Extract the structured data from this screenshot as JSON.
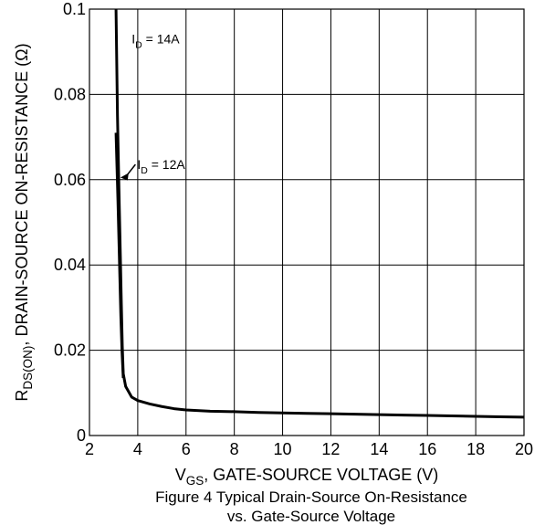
{
  "chart_data": {
    "type": "line",
    "title": "",
    "xlabel_parts": {
      "main": "V",
      "sub": "GS",
      "rest": ", GATE-SOURCE VOLTAGE (V)"
    },
    "ylabel_parts": {
      "main": "R",
      "sub": "DS(ON)",
      "rest": ", DRAIN-SOURCE ON-RESISTANCE (Ω)"
    },
    "caption_lines": [
      "Figure 4 Typical Drain-Source On-Resistance",
      "vs. Gate-Source Voltage"
    ],
    "xlim": [
      2,
      20
    ],
    "ylim": [
      0,
      0.1
    ],
    "x_ticks": [
      2,
      4,
      6,
      8,
      10,
      12,
      14,
      16,
      18,
      20
    ],
    "x_tick_labels": [
      "2",
      "4",
      "6",
      "8",
      "10",
      "12",
      "14",
      "16",
      "18",
      "20"
    ],
    "y_ticks": [
      0,
      0.02,
      0.04,
      0.06,
      0.08,
      0.1
    ],
    "y_tick_labels": [
      "0",
      "0.02",
      "0.04",
      "0.06",
      "0.08",
      "0.1"
    ],
    "grid": true,
    "annotations": [
      {
        "name": "id-14a-label",
        "main": "I",
        "sub": "D",
        "rest": " = 14A",
        "at": [
          3.75,
          0.092
        ]
      },
      {
        "name": "id-12a-label",
        "main": "I",
        "sub": "D",
        "rest": " = 12A",
        "at": [
          3.98,
          0.0625
        ],
        "arrow_to": [
          3.28,
          0.0605
        ]
      }
    ],
    "series": [
      {
        "key": "id14",
        "color": "#000000",
        "x": [
          3.1,
          3.16,
          3.22,
          3.28,
          3.32,
          3.36,
          3.4,
          3.5,
          3.75,
          4.0,
          4.5,
          5.0,
          5.5,
          6.0,
          7.0,
          8.0,
          9.0,
          10.0,
          11.0,
          12.0,
          13.0,
          14.0,
          15.0,
          16.0,
          17.0,
          18.0,
          19.0,
          20.0
        ],
        "y": [
          0.1,
          0.075,
          0.058,
          0.042,
          0.031,
          0.021,
          0.0145,
          0.0115,
          0.009,
          0.0082,
          0.0074,
          0.0068,
          0.0063,
          0.006,
          0.0057,
          0.0056,
          0.0054,
          0.0053,
          0.0052,
          0.0051,
          0.005,
          0.0049,
          0.0048,
          0.0047,
          0.0046,
          0.0045,
          0.0044,
          0.0043
        ]
      },
      {
        "key": "id12",
        "color": "#000000",
        "x": [
          3.1,
          3.14,
          3.18,
          3.22,
          3.26,
          3.3,
          3.35,
          3.4
        ],
        "y": [
          0.071,
          0.063,
          0.055,
          0.046,
          0.037,
          0.028,
          0.0195,
          0.0135
        ]
      }
    ]
  }
}
